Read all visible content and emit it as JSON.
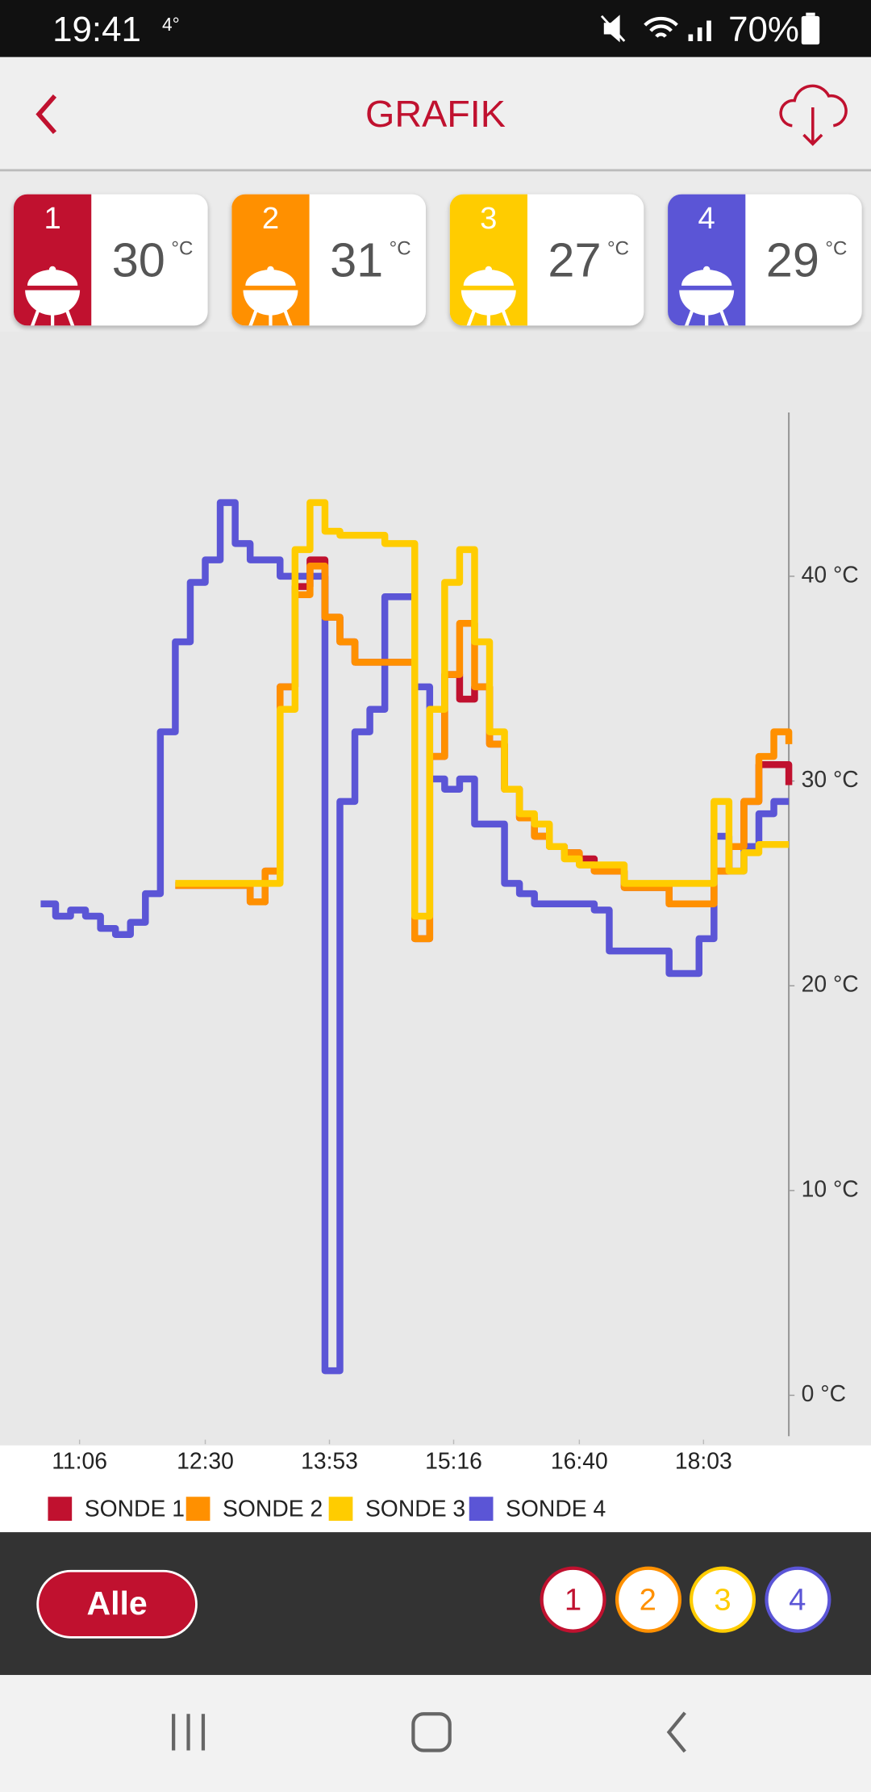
{
  "status_bar": {
    "time": "19:41",
    "weather": "4°",
    "battery": "70%"
  },
  "header": {
    "title": "GRAFIK"
  },
  "probes": [
    {
      "number": 1,
      "temperature": 30,
      "unit": "°C",
      "color": "#c0112f"
    },
    {
      "number": 2,
      "temperature": 31,
      "unit": "°C",
      "color": "#ff9000"
    },
    {
      "number": 3,
      "temperature": 27,
      "unit": "°C",
      "color": "#ffcc00"
    },
    {
      "number": 4,
      "temperature": 29,
      "unit": "°C",
      "color": "#5b55d6"
    }
  ],
  "chart_data": {
    "type": "line",
    "step": true,
    "x": [
      640,
      650,
      660,
      670,
      680,
      690,
      700,
      710,
      720,
      730,
      740,
      750,
      760,
      770,
      780,
      790,
      800,
      810,
      820,
      830,
      840,
      850,
      860,
      870,
      880,
      890,
      900,
      910,
      920,
      930,
      940,
      950,
      960,
      970,
      980,
      990,
      1000,
      1010,
      1020,
      1030,
      1040,
      1050,
      1060,
      1070,
      1080,
      1090,
      1100,
      1110,
      1120,
      1130,
      1140
    ],
    "xlim": [
      638,
      1140
    ],
    "xticks": [
      {
        "value": 666,
        "label": "11:06"
      },
      {
        "value": 750,
        "label": "12:30"
      },
      {
        "value": 833,
        "label": "13:53"
      },
      {
        "value": 916,
        "label": "15:16"
      },
      {
        "value": 1000,
        "label": "16:40"
      },
      {
        "value": 1083,
        "label": "18:03"
      }
    ],
    "ylim": [
      -2,
      48
    ],
    "yticks": [
      {
        "value": 0,
        "label": "0 °C"
      },
      {
        "value": 10,
        "label": "10 °C"
      },
      {
        "value": 20,
        "label": "20 °C"
      },
      {
        "value": 30,
        "label": "30 °C"
      },
      {
        "value": 40,
        "label": "40 °C"
      }
    ],
    "series": [
      {
        "name": "SONDE 1",
        "color": "#c0112f",
        "values": [
          null,
          null,
          null,
          null,
          null,
          null,
          null,
          null,
          null,
          24.9,
          24.9,
          24.9,
          24.9,
          24.9,
          24.1,
          25.6,
          34.6,
          39.5,
          40.8,
          38,
          36.8,
          35.8,
          35.8,
          35.8,
          35.8,
          22.3,
          31.2,
          35.2,
          34,
          34.6,
          31.8,
          29.6,
          28.2,
          27.3,
          26.8,
          26.5,
          26.2,
          25.6,
          25.6,
          24.8,
          24.8,
          24.8,
          24,
          24,
          24,
          25.6,
          26.8,
          29,
          30.8,
          30.8,
          29.8
        ]
      },
      {
        "name": "SONDE 2",
        "color": "#ff9000",
        "values": [
          null,
          null,
          null,
          null,
          null,
          null,
          null,
          null,
          null,
          24.9,
          24.9,
          24.9,
          24.9,
          24.9,
          24.1,
          25.6,
          34.6,
          39.1,
          40.5,
          38,
          36.8,
          35.8,
          35.8,
          35.8,
          35.8,
          22.3,
          31.2,
          35.2,
          37.7,
          34.6,
          31.8,
          29.6,
          28.2,
          27.3,
          26.8,
          26.5,
          25.9,
          25.6,
          25.6,
          24.8,
          24.8,
          24.8,
          24,
          24,
          24,
          25.6,
          26.8,
          29,
          31.2,
          32.4,
          31.8
        ]
      },
      {
        "name": "SONDE 3",
        "color": "#ffcc00",
        "values": [
          null,
          null,
          null,
          null,
          null,
          null,
          null,
          null,
          null,
          25,
          25,
          25,
          25,
          25,
          25,
          25,
          33.5,
          41.3,
          43.6,
          42.2,
          42,
          42,
          42,
          41.6,
          41.6,
          23.4,
          33.5,
          39.7,
          41.3,
          36.8,
          32.4,
          29.6,
          28.4,
          27.9,
          26.8,
          26.2,
          25.9,
          25.9,
          25.9,
          25,
          25,
          25,
          25,
          25,
          25,
          29,
          25.6,
          26.5,
          26.9,
          26.9,
          26.9
        ]
      },
      {
        "name": "SONDE 4",
        "color": "#5b55d6",
        "values": [
          24,
          23.4,
          23.7,
          23.4,
          22.8,
          22.5,
          23.1,
          24.5,
          32.4,
          36.8,
          39.7,
          40.8,
          43.6,
          41.6,
          40.8,
          40.8,
          40,
          40,
          40,
          1.2,
          29,
          32.4,
          33.5,
          39,
          39,
          34.6,
          30.1,
          29.6,
          30.1,
          27.9,
          27.9,
          25,
          24.5,
          24,
          24,
          24,
          24,
          23.7,
          21.7,
          21.7,
          21.7,
          21.7,
          20.6,
          20.6,
          22.3,
          27.3,
          25.6,
          26.8,
          28.4,
          29,
          29
        ]
      }
    ],
    "draw_order": [
      3,
      0,
      1,
      2
    ]
  },
  "filter": {
    "all": "Alle",
    "buttons": [
      1,
      2,
      3,
      4
    ]
  }
}
